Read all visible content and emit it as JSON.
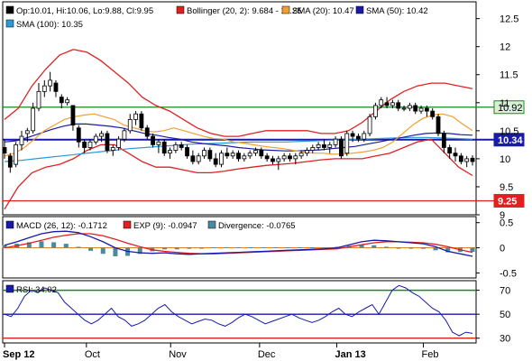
{
  "chart_data": [
    {
      "type": "candlestick",
      "panel": "price",
      "legend": [
        {
          "icon": "black-square-icon",
          "color": "#000000",
          "text": "Op:10.01, Hi:10.06, Lo:9.88, Cl:9.95"
        },
        {
          "icon": "red-square-icon",
          "color": "#e02020",
          "text": "Bollinger (20, 2): 9.684 - 11.25"
        },
        {
          "icon": "orange-square-icon",
          "color": "#f0a030",
          "text": "SMA (20): 10.47"
        },
        {
          "icon": "blue-square-icon",
          "color": "#1a1aa8",
          "text": "SMA (50): 10.42"
        },
        {
          "icon": "lightblue-square-icon",
          "color": "#2a9ad8",
          "text": "SMA (100): 10.35"
        }
      ],
      "y_ticks": [
        "12.5",
        "12",
        "11.5",
        "11",
        "10.5",
        "10",
        "9.5",
        "9"
      ],
      "y_tick_values": [
        12.5,
        12,
        11.5,
        11,
        10.5,
        10,
        9.5,
        9
      ],
      "ylim": [
        9,
        12.8
      ],
      "horizontal_lines": [
        {
          "label": "10.92",
          "value": 10.92,
          "color": "#1a8a1a",
          "text_color": "#000000",
          "label_bg": "#d8f0d8"
        },
        {
          "label": "10.34",
          "value": 10.34,
          "color": "#1a1aa8",
          "text_color": "#ffffff",
          "label_bg": "#1a1aa8"
        },
        {
          "label": "9.25",
          "value": 9.25,
          "color": "#e02020",
          "text_color": "#ffffff",
          "label_bg": "#e02020"
        }
      ],
      "candles": [
        [
          10.2,
          10.35,
          10.0,
          10.1
        ],
        [
          10.05,
          10.1,
          9.75,
          9.85
        ],
        [
          9.9,
          10.3,
          9.85,
          10.25
        ],
        [
          10.25,
          10.5,
          10.15,
          10.4
        ],
        [
          10.45,
          10.55,
          10.3,
          10.5
        ],
        [
          10.5,
          11.0,
          10.45,
          10.9
        ],
        [
          10.9,
          11.35,
          10.85,
          11.2
        ],
        [
          11.2,
          11.4,
          11.1,
          11.3
        ],
        [
          11.3,
          11.55,
          11.2,
          11.4
        ],
        [
          11.35,
          11.4,
          11.1,
          11.2
        ],
        [
          11.1,
          11.15,
          10.9,
          11.0
        ],
        [
          11.0,
          11.1,
          10.95,
          11.05
        ],
        [
          10.95,
          10.95,
          10.5,
          10.6
        ],
        [
          10.55,
          10.6,
          10.2,
          10.3
        ],
        [
          10.3,
          10.35,
          10.1,
          10.2
        ],
        [
          10.2,
          10.35,
          10.15,
          10.3
        ],
        [
          10.3,
          10.45,
          10.25,
          10.4
        ],
        [
          10.4,
          10.5,
          10.3,
          10.45
        ],
        [
          10.45,
          10.5,
          10.1,
          10.15
        ],
        [
          10.15,
          10.25,
          10.05,
          10.2
        ],
        [
          10.2,
          10.4,
          10.15,
          10.35
        ],
        [
          10.35,
          10.55,
          10.3,
          10.5
        ],
        [
          10.5,
          10.8,
          10.45,
          10.7
        ],
        [
          10.7,
          10.85,
          10.6,
          10.8
        ],
        [
          10.8,
          10.85,
          10.5,
          10.55
        ],
        [
          10.55,
          10.6,
          10.35,
          10.4
        ],
        [
          10.4,
          10.45,
          10.2,
          10.25
        ],
        [
          10.25,
          10.35,
          10.1,
          10.3
        ],
        [
          10.3,
          10.35,
          10.05,
          10.1
        ],
        [
          10.1,
          10.2,
          10.0,
          10.15
        ],
        [
          10.15,
          10.3,
          10.1,
          10.25
        ],
        [
          10.25,
          10.3,
          10.15,
          10.2
        ],
        [
          10.2,
          10.25,
          10.0,
          10.05
        ],
        [
          10.05,
          10.15,
          9.9,
          9.95
        ],
        [
          9.95,
          10.1,
          9.9,
          10.05
        ],
        [
          10.05,
          10.2,
          10.0,
          10.15
        ],
        [
          10.15,
          10.2,
          9.95,
          10.0
        ],
        [
          10.0,
          10.1,
          9.85,
          9.9
        ],
        [
          9.9,
          10.15,
          9.85,
          10.1
        ],
        [
          10.1,
          10.2,
          10.0,
          10.05
        ],
        [
          10.05,
          10.15,
          10.0,
          10.1
        ],
        [
          10.1,
          10.15,
          9.95,
          10.0
        ],
        [
          10.0,
          10.1,
          9.95,
          10.05
        ],
        [
          10.05,
          10.15,
          10.0,
          10.1
        ],
        [
          10.1,
          10.2,
          10.05,
          10.15
        ],
        [
          10.15,
          10.2,
          10.0,
          10.05
        ],
        [
          10.05,
          10.1,
          9.95,
          10.0
        ],
        [
          10.0,
          10.05,
          9.9,
          9.95
        ],
        [
          9.95,
          10.05,
          9.8,
          10.0
        ],
        [
          10.0,
          10.1,
          9.95,
          10.05
        ],
        [
          10.05,
          10.1,
          9.95,
          10.0
        ],
        [
          10.0,
          10.1,
          9.9,
          10.05
        ],
        [
          10.05,
          10.15,
          10.0,
          10.1
        ],
        [
          10.1,
          10.2,
          10.05,
          10.15
        ],
        [
          10.15,
          10.25,
          10.1,
          10.2
        ],
        [
          10.2,
          10.3,
          10.15,
          10.25
        ],
        [
          10.25,
          10.35,
          10.15,
          10.2
        ],
        [
          10.2,
          10.3,
          10.1,
          10.25
        ],
        [
          10.25,
          10.4,
          10.2,
          10.35
        ],
        [
          10.35,
          10.4,
          10.0,
          10.05
        ],
        [
          10.1,
          10.5,
          10.05,
          10.45
        ],
        [
          10.45,
          10.5,
          10.3,
          10.4
        ],
        [
          10.4,
          10.45,
          10.3,
          10.35
        ],
        [
          10.35,
          10.5,
          10.3,
          10.45
        ],
        [
          10.45,
          10.8,
          10.4,
          10.75
        ],
        [
          10.75,
          11.0,
          10.7,
          10.95
        ],
        [
          10.95,
          11.1,
          10.9,
          11.05
        ],
        [
          11.0,
          11.1,
          10.9,
          10.95
        ],
        [
          10.95,
          11.05,
          10.9,
          11.0
        ],
        [
          11.0,
          11.05,
          10.85,
          10.9
        ],
        [
          10.9,
          10.95,
          10.85,
          10.9
        ],
        [
          10.9,
          11.0,
          10.85,
          10.95
        ],
        [
          10.95,
          11.0,
          10.8,
          10.85
        ],
        [
          10.85,
          10.95,
          10.8,
          10.9
        ],
        [
          10.9,
          10.95,
          10.75,
          10.85
        ],
        [
          10.85,
          10.9,
          10.7,
          10.75
        ],
        [
          10.75,
          10.8,
          10.4,
          10.45
        ],
        [
          10.45,
          10.5,
          10.1,
          10.2
        ],
        [
          10.2,
          10.25,
          10.0,
          10.1
        ],
        [
          10.1,
          10.2,
          9.95,
          10.05
        ],
        [
          10.05,
          10.1,
          9.9,
          9.95
        ],
        [
          9.95,
          10.05,
          9.85,
          10.0
        ],
        [
          10.01,
          10.06,
          9.88,
          9.95
        ]
      ],
      "sma20": [
        10.05,
        10.1,
        10.2,
        10.35,
        10.5,
        10.6,
        10.7,
        10.75,
        10.78,
        10.8,
        10.75,
        10.7,
        10.6,
        10.55,
        10.5,
        10.48,
        10.5,
        10.55,
        10.5,
        10.45,
        10.4,
        10.36,
        10.35,
        10.3,
        10.28,
        10.25,
        10.22,
        10.2,
        10.18,
        10.15,
        10.12,
        10.1,
        10.1,
        10.08,
        10.08,
        10.1,
        10.12,
        10.15,
        10.2,
        10.3,
        10.45,
        10.6,
        10.72,
        10.78,
        10.8,
        10.75,
        10.62,
        10.5
      ],
      "sma50": [
        10.3,
        10.32,
        10.38,
        10.45,
        10.52,
        10.58,
        10.62,
        10.62,
        10.6,
        10.58,
        10.55,
        10.5,
        10.45,
        10.42,
        10.38,
        10.35,
        10.3,
        10.27,
        10.25,
        10.23,
        10.2,
        10.18,
        10.16,
        10.15,
        10.14,
        10.14,
        10.15,
        10.16,
        10.18,
        10.2,
        10.22,
        10.26,
        10.3,
        10.34,
        10.38,
        10.42,
        10.45,
        10.46,
        10.45,
        10.43,
        10.42
      ],
      "sma100": [
        9.95,
        9.97,
        10.0,
        10.03,
        10.06,
        10.09,
        10.12,
        10.15,
        10.18,
        10.2,
        10.22,
        10.24,
        10.26,
        10.27,
        10.28,
        10.29,
        10.3,
        10.3,
        10.3,
        10.31,
        10.32,
        10.33,
        10.34,
        10.35,
        10.36,
        10.37,
        10.38,
        10.38,
        10.37,
        10.36,
        10.35
      ],
      "bollinger_upper": [
        10.7,
        10.9,
        11.3,
        11.6,
        11.85,
        11.95,
        11.9,
        11.75,
        11.55,
        11.35,
        11.1,
        10.95,
        10.85,
        10.7,
        10.55,
        10.45,
        10.4,
        10.4,
        10.45,
        10.5,
        10.5,
        10.5,
        10.5,
        10.45,
        10.45,
        10.5,
        10.65,
        10.85,
        11.05,
        11.2,
        11.3,
        11.35,
        11.35,
        11.3,
        11.25
      ],
      "bollinger_lower": [
        9.1,
        9.5,
        9.75,
        9.85,
        9.9,
        10.0,
        10.15,
        10.25,
        10.25,
        10.1,
        9.95,
        9.85,
        9.85,
        9.8,
        9.75,
        9.75,
        9.78,
        9.82,
        9.85,
        9.88,
        9.9,
        9.92,
        9.95,
        9.98,
        10.0,
        10.0,
        10.0,
        10.05,
        10.1,
        10.2,
        10.3,
        10.35,
        10.1,
        9.85,
        9.7
      ]
    },
    {
      "type": "line",
      "panel": "macd",
      "legend": [
        {
          "icon": "blue-square-icon",
          "color": "#1a1aa8",
          "text": "MACD (26, 12): -0.1712"
        },
        {
          "icon": "red-square-icon",
          "color": "#e02020",
          "text": "EXP (9): -0.0947"
        },
        {
          "icon": "teal-square-icon",
          "color": "#4a8aa0",
          "text": "Divergence: -0.0765"
        }
      ],
      "y_ticks": [
        "0.5",
        "0",
        "-0.5"
      ],
      "y_tick_values": [
        0.5,
        0,
        -0.5
      ],
      "ylim": [
        -0.6,
        0.62
      ],
      "zero_line_color": "#e08020",
      "macd": [
        0.05,
        0.12,
        0.2,
        0.28,
        0.32,
        0.33,
        0.3,
        0.22,
        0.12,
        0.0,
        -0.07,
        -0.1,
        -0.11,
        -0.1,
        -0.12,
        -0.13,
        -0.12,
        -0.11,
        -0.1,
        -0.09,
        -0.08,
        -0.07,
        -0.06,
        -0.05,
        -0.04,
        -0.03,
        -0.02,
        0.0,
        0.06,
        0.12,
        0.15,
        0.14,
        0.12,
        0.1,
        0.08,
        0.02,
        -0.07,
        -0.12,
        -0.17
      ],
      "signal": [
        0.0,
        0.04,
        0.09,
        0.15,
        0.21,
        0.25,
        0.28,
        0.28,
        0.24,
        0.17,
        0.09,
        0.02,
        -0.04,
        -0.07,
        -0.09,
        -0.11,
        -0.12,
        -0.12,
        -0.11,
        -0.1,
        -0.09,
        -0.08,
        -0.07,
        -0.06,
        -0.05,
        -0.04,
        -0.03,
        -0.02,
        0.02,
        0.06,
        0.1,
        0.12,
        0.12,
        0.11,
        0.1,
        0.07,
        0.02,
        -0.04,
        -0.09
      ],
      "divergence": [
        0.05,
        0.08,
        0.11,
        0.13,
        0.11,
        0.08,
        0.02,
        -0.06,
        -0.12,
        -0.17,
        -0.16,
        -0.12,
        -0.07,
        -0.03,
        -0.03,
        -0.02,
        0.0,
        0.01,
        0.01,
        0.01,
        0.01,
        0.01,
        0.01,
        0.01,
        0.01,
        0.01,
        0.01,
        0.02,
        0.04,
        0.06,
        0.05,
        0.02,
        0.0,
        -0.01,
        -0.02,
        -0.05,
        -0.09,
        -0.08,
        -0.08
      ]
    },
    {
      "type": "line",
      "panel": "rsi",
      "legend": [
        {
          "icon": "blue-square-icon",
          "color": "#1a1aa8",
          "text": "RSI: 34.02"
        }
      ],
      "y_ticks": [
        "70",
        "50",
        "30"
      ],
      "y_tick_values": [
        70,
        50,
        30
      ],
      "ylim": [
        26,
        78
      ],
      "levels": [
        {
          "value": 70,
          "color": "#1a8a1a"
        },
        {
          "value": 50,
          "color": "#1a1aa8"
        },
        {
          "value": 30,
          "color": "#e02020"
        }
      ],
      "rsi": [
        50,
        48,
        55,
        65,
        70,
        68,
        72,
        70,
        68,
        60,
        55,
        50,
        45,
        42,
        45,
        50,
        55,
        48,
        45,
        40,
        42,
        45,
        50,
        55,
        58,
        52,
        48,
        45,
        42,
        44,
        46,
        45,
        42,
        40,
        43,
        47,
        50,
        48,
        45,
        42,
        44,
        46,
        48,
        50,
        47,
        45,
        43,
        45,
        48,
        52,
        55,
        50,
        48,
        52,
        55,
        58,
        50,
        60,
        70,
        74,
        72,
        68,
        65,
        60,
        55,
        52,
        45,
        35,
        32,
        35,
        34
      ]
    }
  ],
  "x_labels": [
    {
      "text": "Sep 12",
      "bold": true,
      "pos": 0.0
    },
    {
      "text": "Oct",
      "bold": false,
      "pos": 0.175
    },
    {
      "text": "Nov",
      "bold": false,
      "pos": 0.355
    },
    {
      "text": "Dec",
      "bold": false,
      "pos": 0.545
    },
    {
      "text": "Jan 13",
      "bold": true,
      "pos": 0.71
    },
    {
      "text": "Feb",
      "bold": false,
      "pos": 0.895
    }
  ]
}
